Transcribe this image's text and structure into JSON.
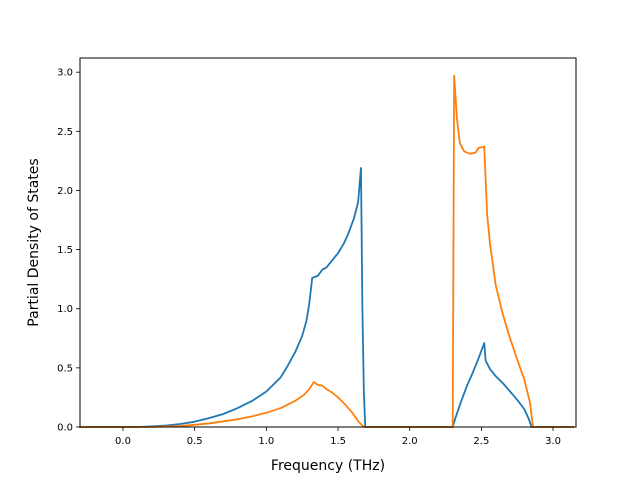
{
  "chart_data": {
    "type": "line",
    "title": "",
    "xlabel": "Frequency (THz)",
    "ylabel": "Partial Density of States",
    "xlim": [
      -0.3,
      3.16
    ],
    "ylim": [
      0.0,
      3.12
    ],
    "xticks": [
      0.0,
      0.5,
      1.0,
      1.5,
      2.0,
      2.5,
      3.0
    ],
    "xtick_labels": [
      "0.0",
      "0.5",
      "1.0",
      "1.5",
      "2.0",
      "2.5",
      "3.0"
    ],
    "yticks": [
      0.0,
      0.5,
      1.0,
      1.5,
      2.0,
      2.5,
      3.0
    ],
    "ytick_labels": [
      "0.0",
      "0.5",
      "1.0",
      "1.5",
      "2.0",
      "2.5",
      "3.0"
    ],
    "grid": false,
    "legend": "none",
    "series": [
      {
        "color": "#1f77b4",
        "points": [
          [
            -0.3,
            0.0
          ],
          [
            0.1,
            0.0
          ],
          [
            0.2,
            0.005
          ],
          [
            0.3,
            0.012
          ],
          [
            0.4,
            0.025
          ],
          [
            0.5,
            0.045
          ],
          [
            0.6,
            0.075
          ],
          [
            0.7,
            0.11
          ],
          [
            0.8,
            0.16
          ],
          [
            0.9,
            0.22
          ],
          [
            1.0,
            0.3
          ],
          [
            1.1,
            0.42
          ],
          [
            1.15,
            0.52
          ],
          [
            1.2,
            0.63
          ],
          [
            1.25,
            0.77
          ],
          [
            1.28,
            0.9
          ],
          [
            1.3,
            1.05
          ],
          [
            1.32,
            1.26
          ],
          [
            1.36,
            1.28
          ],
          [
            1.39,
            1.33
          ],
          [
            1.42,
            1.35
          ],
          [
            1.46,
            1.41
          ],
          [
            1.5,
            1.47
          ],
          [
            1.54,
            1.55
          ],
          [
            1.57,
            1.63
          ],
          [
            1.61,
            1.76
          ],
          [
            1.64,
            1.9
          ],
          [
            1.66,
            2.19
          ],
          [
            1.67,
            1.0
          ],
          [
            1.68,
            0.3
          ],
          [
            1.69,
            0.0
          ],
          [
            2.3,
            0.0
          ],
          [
            2.32,
            0.08
          ],
          [
            2.36,
            0.22
          ],
          [
            2.4,
            0.35
          ],
          [
            2.44,
            0.46
          ],
          [
            2.48,
            0.58
          ],
          [
            2.52,
            0.71
          ],
          [
            2.53,
            0.56
          ],
          [
            2.56,
            0.49
          ],
          [
            2.6,
            0.43
          ],
          [
            2.65,
            0.37
          ],
          [
            2.7,
            0.3
          ],
          [
            2.75,
            0.23
          ],
          [
            2.8,
            0.15
          ],
          [
            2.83,
            0.07
          ],
          [
            2.85,
            0.0
          ],
          [
            3.14,
            0.0
          ]
        ]
      },
      {
        "color": "#ff7f0e",
        "points": [
          [
            -0.3,
            0.0
          ],
          [
            0.2,
            0.0
          ],
          [
            0.4,
            0.008
          ],
          [
            0.6,
            0.03
          ],
          [
            0.8,
            0.065
          ],
          [
            0.9,
            0.09
          ],
          [
            1.0,
            0.12
          ],
          [
            1.1,
            0.16
          ],
          [
            1.2,
            0.22
          ],
          [
            1.26,
            0.27
          ],
          [
            1.3,
            0.32
          ],
          [
            1.33,
            0.38
          ],
          [
            1.36,
            0.355
          ],
          [
            1.39,
            0.35
          ],
          [
            1.42,
            0.32
          ],
          [
            1.46,
            0.29
          ],
          [
            1.5,
            0.25
          ],
          [
            1.55,
            0.19
          ],
          [
            1.6,
            0.12
          ],
          [
            1.64,
            0.05
          ],
          [
            1.68,
            0.0
          ],
          [
            2.3,
            0.0
          ],
          [
            2.31,
            2.97
          ],
          [
            2.33,
            2.6
          ],
          [
            2.35,
            2.4
          ],
          [
            2.38,
            2.33
          ],
          [
            2.42,
            2.31
          ],
          [
            2.46,
            2.32
          ],
          [
            2.48,
            2.36
          ],
          [
            2.52,
            2.37
          ],
          [
            2.54,
            1.8
          ],
          [
            2.56,
            1.55
          ],
          [
            2.6,
            1.2
          ],
          [
            2.65,
            0.95
          ],
          [
            2.7,
            0.75
          ],
          [
            2.75,
            0.57
          ],
          [
            2.8,
            0.4
          ],
          [
            2.84,
            0.2
          ],
          [
            2.86,
            0.0
          ],
          [
            3.14,
            0.0
          ]
        ]
      }
    ]
  }
}
